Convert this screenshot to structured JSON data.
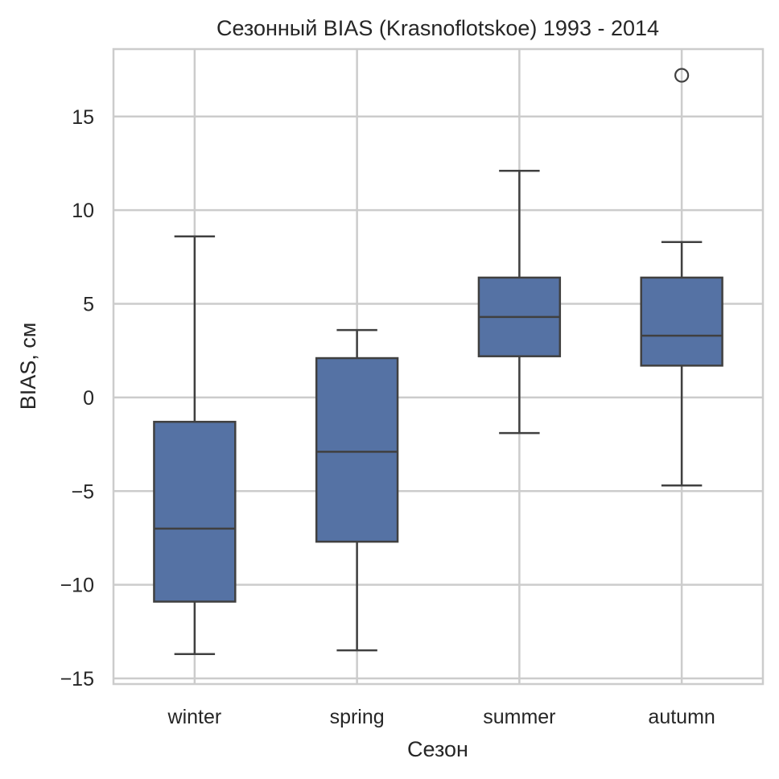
{
  "chart_data": {
    "type": "box",
    "title": "Сезонный BIAS (Krasnoflotskoe) 1993 - 2014",
    "xlabel": "Сезон",
    "ylabel": "BIAS, см",
    "ylim": [
      -15.3,
      18.6
    ],
    "yticks": [
      15,
      10,
      5,
      0,
      -5,
      -10,
      -15
    ],
    "ytick_labels": [
      "15",
      "10",
      "5",
      "0",
      "−5",
      "−10",
      "−15"
    ],
    "grid": true,
    "box_color": "#5572a4",
    "line_color": "#404040",
    "grid_color": "#cccccc",
    "categories": [
      "winter",
      "spring",
      "summer",
      "autumn"
    ],
    "boxes": [
      {
        "category": "winter",
        "whisker_low": -13.7,
        "q1": -10.9,
        "median": -7.0,
        "q3": -1.3,
        "whisker_high": 8.6,
        "outliers": []
      },
      {
        "category": "spring",
        "whisker_low": -13.5,
        "q1": -7.7,
        "median": -2.9,
        "q3": 2.1,
        "whisker_high": 3.6,
        "outliers": []
      },
      {
        "category": "summer",
        "whisker_low": -1.9,
        "q1": 2.2,
        "median": 4.3,
        "q3": 6.4,
        "whisker_high": 12.1,
        "outliers": []
      },
      {
        "category": "autumn",
        "whisker_low": -4.7,
        "q1": 1.7,
        "median": 3.3,
        "q3": 6.4,
        "whisker_high": 8.3,
        "outliers": [
          17.2
        ]
      }
    ]
  }
}
